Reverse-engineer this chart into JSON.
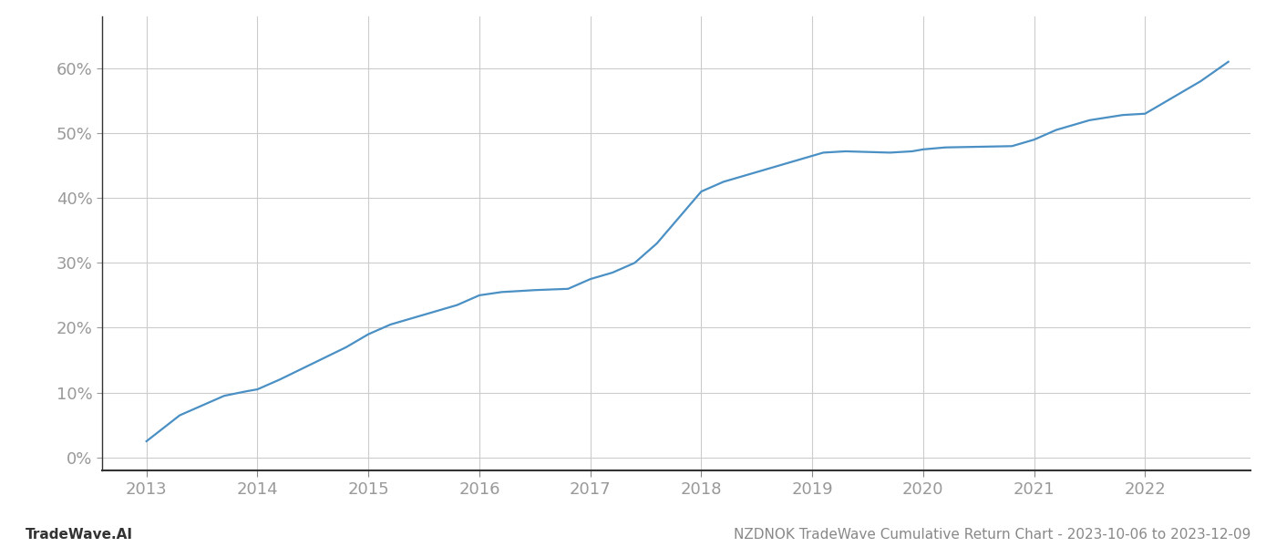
{
  "title": "NZDNOK TradeWave Cumulative Return Chart - 2023-10-06 to 2023-12-09",
  "watermark": "TradeWave.AI",
  "line_color": "#4a90c4",
  "background_color": "#ffffff",
  "grid_color": "#cccccc",
  "x_years": [
    2013,
    2014,
    2015,
    2016,
    2017,
    2018,
    2019,
    2020,
    2021,
    2022
  ],
  "x_data": [
    2013.0,
    2013.15,
    2013.3,
    2013.5,
    2013.7,
    2013.9,
    2014.0,
    2014.2,
    2014.5,
    2014.8,
    2015.0,
    2015.2,
    2015.5,
    2015.8,
    2016.0,
    2016.2,
    2016.5,
    2016.8,
    2017.0,
    2017.2,
    2017.4,
    2017.6,
    2017.8,
    2018.0,
    2018.2,
    2018.4,
    2018.6,
    2018.8,
    2019.0,
    2019.1,
    2019.3,
    2019.5,
    2019.7,
    2019.9,
    2020.0,
    2020.2,
    2020.5,
    2020.8,
    2021.0,
    2021.2,
    2021.5,
    2021.8,
    2022.0,
    2022.2,
    2022.5,
    2022.75
  ],
  "y_data": [
    2.5,
    4.5,
    6.5,
    8.0,
    9.5,
    10.2,
    10.5,
    12.0,
    14.5,
    17.0,
    19.0,
    20.5,
    22.0,
    23.5,
    25.0,
    25.5,
    25.8,
    26.0,
    27.5,
    28.5,
    30.0,
    33.0,
    37.0,
    41.0,
    42.5,
    43.5,
    44.5,
    45.5,
    46.5,
    47.0,
    47.2,
    47.1,
    47.0,
    47.2,
    47.5,
    47.8,
    47.9,
    48.0,
    49.0,
    50.5,
    52.0,
    52.8,
    53.0,
    55.0,
    58.0,
    61.0
  ],
  "ylim": [
    -2,
    68
  ],
  "yticks": [
    0,
    10,
    20,
    30,
    40,
    50,
    60
  ],
  "xlim": [
    2012.6,
    2022.95
  ],
  "title_fontsize": 11,
  "watermark_fontsize": 11,
  "tick_fontsize": 13,
  "line_width": 1.6
}
